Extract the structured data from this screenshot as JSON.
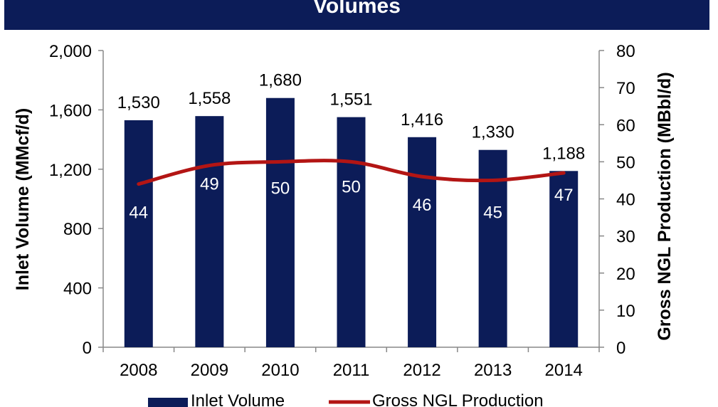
{
  "colors": {
    "header": "#0c1c58",
    "bar": "#0c1c58",
    "line": "#b31514",
    "axis": "#888888",
    "text": "#000000"
  },
  "chart_data": {
    "type": "bar+line",
    "title": "Volumes",
    "categories": [
      "2008",
      "2009",
      "2010",
      "2011",
      "2012",
      "2013",
      "2014"
    ],
    "series": [
      {
        "name": "Inlet Volume",
        "type": "bar",
        "axis": "left",
        "values": [
          1530,
          1558,
          1680,
          1551,
          1416,
          1330,
          1188
        ]
      },
      {
        "name": "Gross NGL Production",
        "type": "line",
        "axis": "right",
        "values": [
          44,
          49,
          50,
          50,
          46,
          45,
          47
        ]
      }
    ],
    "bar_labels": [
      "1,530",
      "1,558",
      "1,680",
      "1,551",
      "1,416",
      "1,330",
      "1,188"
    ],
    "line_labels": [
      "44",
      "49",
      "50",
      "50",
      "46",
      "45",
      "47"
    ],
    "y_left": {
      "label": "Inlet Volume (MMcf/d)",
      "min": 0,
      "max": 2000,
      "ticks": [
        0,
        400,
        800,
        1200,
        1600,
        2000
      ],
      "tick_labels": [
        "0",
        "400",
        "800",
        "1,200",
        "1,600",
        "2,000"
      ]
    },
    "y_right": {
      "label": "Gross NGL Production (MBbl/d)",
      "min": 0,
      "max": 80,
      "ticks": [
        0,
        10,
        20,
        30,
        40,
        50,
        60,
        70,
        80
      ],
      "tick_labels": [
        "0",
        "10",
        "20",
        "30",
        "40",
        "50",
        "60",
        "70",
        "80"
      ]
    },
    "legend": {
      "position": "bottom",
      "items": [
        "Inlet Volume",
        "Gross NGL Production"
      ]
    },
    "grid": false
  }
}
